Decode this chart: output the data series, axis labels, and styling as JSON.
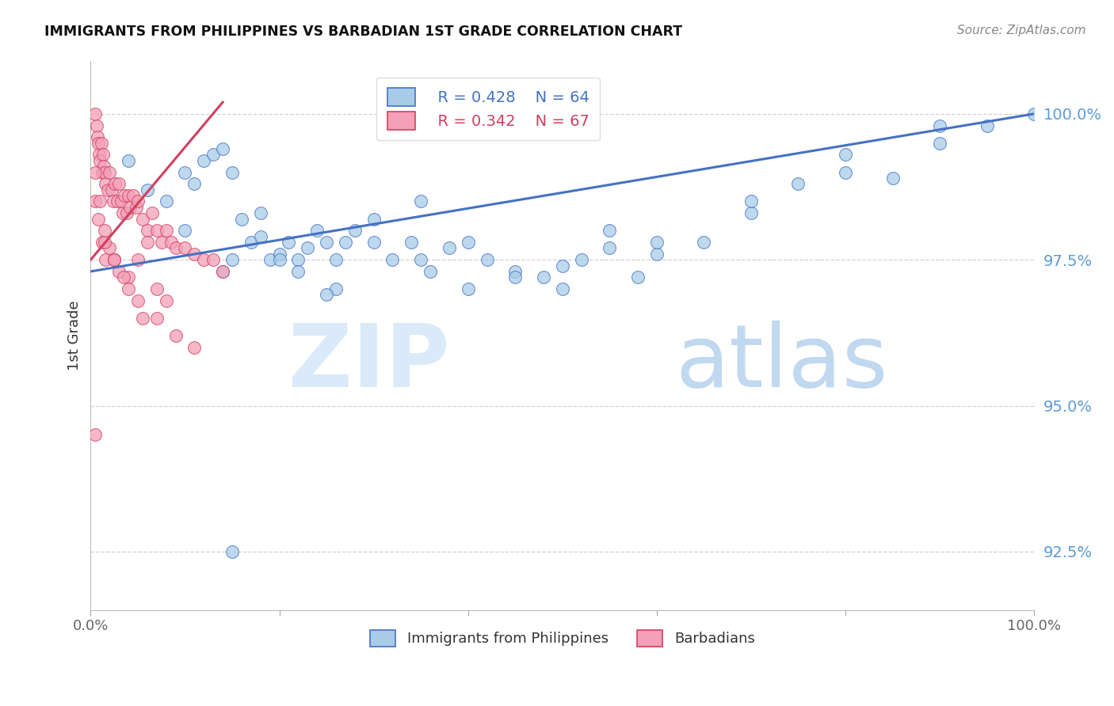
{
  "title": "IMMIGRANTS FROM PHILIPPINES VS BARBADIAN 1ST GRADE CORRELATION CHART",
  "source": "Source: ZipAtlas.com",
  "ylabel": "1st Grade",
  "legend_blue_r": "R = 0.428",
  "legend_blue_n": "N = 64",
  "legend_pink_r": "R = 0.342",
  "legend_pink_n": "N = 67",
  "legend_blue_label": "Immigrants from Philippines",
  "legend_pink_label": "Barbadians",
  "blue_color": "#a8cce8",
  "pink_color": "#f4a0b8",
  "trend_blue_color": "#4472c4",
  "trend_pink_color": "#d04060",
  "ytick_color": "#5b9bd5",
  "watermark_zip_color": "#daeaf8",
  "watermark_atlas_color": "#c0d8f0",
  "yticks": [
    92.5,
    95.0,
    97.5,
    100.0
  ],
  "ylim": [
    91.5,
    100.9
  ],
  "xlim": [
    0.0,
    1.0
  ],
  "blue_trend_x0": 0.0,
  "blue_trend_y0": 97.3,
  "blue_trend_x1": 1.0,
  "blue_trend_y1": 100.0,
  "pink_trend_x0": 0.0,
  "pink_trend_y0": 97.5,
  "pink_trend_x1": 0.14,
  "pink_trend_y1": 100.2,
  "blue_x": [
    0.04,
    0.08,
    0.1,
    0.11,
    0.12,
    0.13,
    0.14,
    0.15,
    0.16,
    0.17,
    0.18,
    0.19,
    0.2,
    0.21,
    0.22,
    0.23,
    0.24,
    0.25,
    0.26,
    0.27,
    0.28,
    0.3,
    0.32,
    0.34,
    0.36,
    0.38,
    0.4,
    0.42,
    0.45,
    0.48,
    0.5,
    0.52,
    0.55,
    0.58,
    0.6,
    0.65,
    0.7,
    0.75,
    0.8,
    0.85,
    0.9,
    0.95,
    1.0,
    0.06,
    0.1,
    0.14,
    0.18,
    0.22,
    0.26,
    0.3,
    0.35,
    0.4,
    0.5,
    0.6,
    0.7,
    0.8,
    0.9,
    0.2,
    0.25,
    0.35,
    0.45,
    0.55,
    0.15,
    0.15
  ],
  "blue_y": [
    99.2,
    98.5,
    99.0,
    98.8,
    99.2,
    99.3,
    99.4,
    99.0,
    98.2,
    97.8,
    97.9,
    97.5,
    97.6,
    97.8,
    97.5,
    97.7,
    98.0,
    97.8,
    97.5,
    97.8,
    98.0,
    98.2,
    97.5,
    97.8,
    97.3,
    97.7,
    97.8,
    97.5,
    97.3,
    97.2,
    97.0,
    97.5,
    98.0,
    97.2,
    97.6,
    97.8,
    98.3,
    98.8,
    99.3,
    98.9,
    99.5,
    99.8,
    100.0,
    98.7,
    98.0,
    97.3,
    98.3,
    97.3,
    97.0,
    97.8,
    98.5,
    97.0,
    97.4,
    97.8,
    98.5,
    99.0,
    99.8,
    97.5,
    96.9,
    97.5,
    97.2,
    97.7,
    92.5,
    97.5
  ],
  "pink_x": [
    0.005,
    0.006,
    0.007,
    0.008,
    0.009,
    0.01,
    0.011,
    0.012,
    0.013,
    0.014,
    0.015,
    0.016,
    0.018,
    0.02,
    0.022,
    0.024,
    0.026,
    0.028,
    0.03,
    0.032,
    0.034,
    0.036,
    0.038,
    0.04,
    0.042,
    0.045,
    0.048,
    0.05,
    0.055,
    0.06,
    0.065,
    0.07,
    0.075,
    0.08,
    0.085,
    0.09,
    0.1,
    0.11,
    0.12,
    0.13,
    0.14,
    0.005,
    0.008,
    0.012,
    0.016,
    0.02,
    0.025,
    0.03,
    0.04,
    0.05,
    0.06,
    0.07,
    0.08,
    0.01,
    0.015,
    0.025,
    0.035,
    0.05,
    0.07,
    0.09,
    0.11,
    0.015,
    0.025,
    0.04,
    0.055,
    0.005,
    0.005
  ],
  "pink_y": [
    100.0,
    99.8,
    99.6,
    99.5,
    99.3,
    99.2,
    99.5,
    99.0,
    99.3,
    99.1,
    99.0,
    98.8,
    98.7,
    99.0,
    98.7,
    98.5,
    98.8,
    98.5,
    98.8,
    98.5,
    98.3,
    98.6,
    98.3,
    98.6,
    98.4,
    98.6,
    98.4,
    98.5,
    98.2,
    98.0,
    98.3,
    98.0,
    97.8,
    98.0,
    97.8,
    97.7,
    97.7,
    97.6,
    97.5,
    97.5,
    97.3,
    98.5,
    98.2,
    97.8,
    97.5,
    97.7,
    97.5,
    97.3,
    97.2,
    97.5,
    97.8,
    97.0,
    96.8,
    98.5,
    97.8,
    97.5,
    97.2,
    96.8,
    96.5,
    96.2,
    96.0,
    98.0,
    97.5,
    97.0,
    96.5,
    94.5,
    99.0
  ]
}
